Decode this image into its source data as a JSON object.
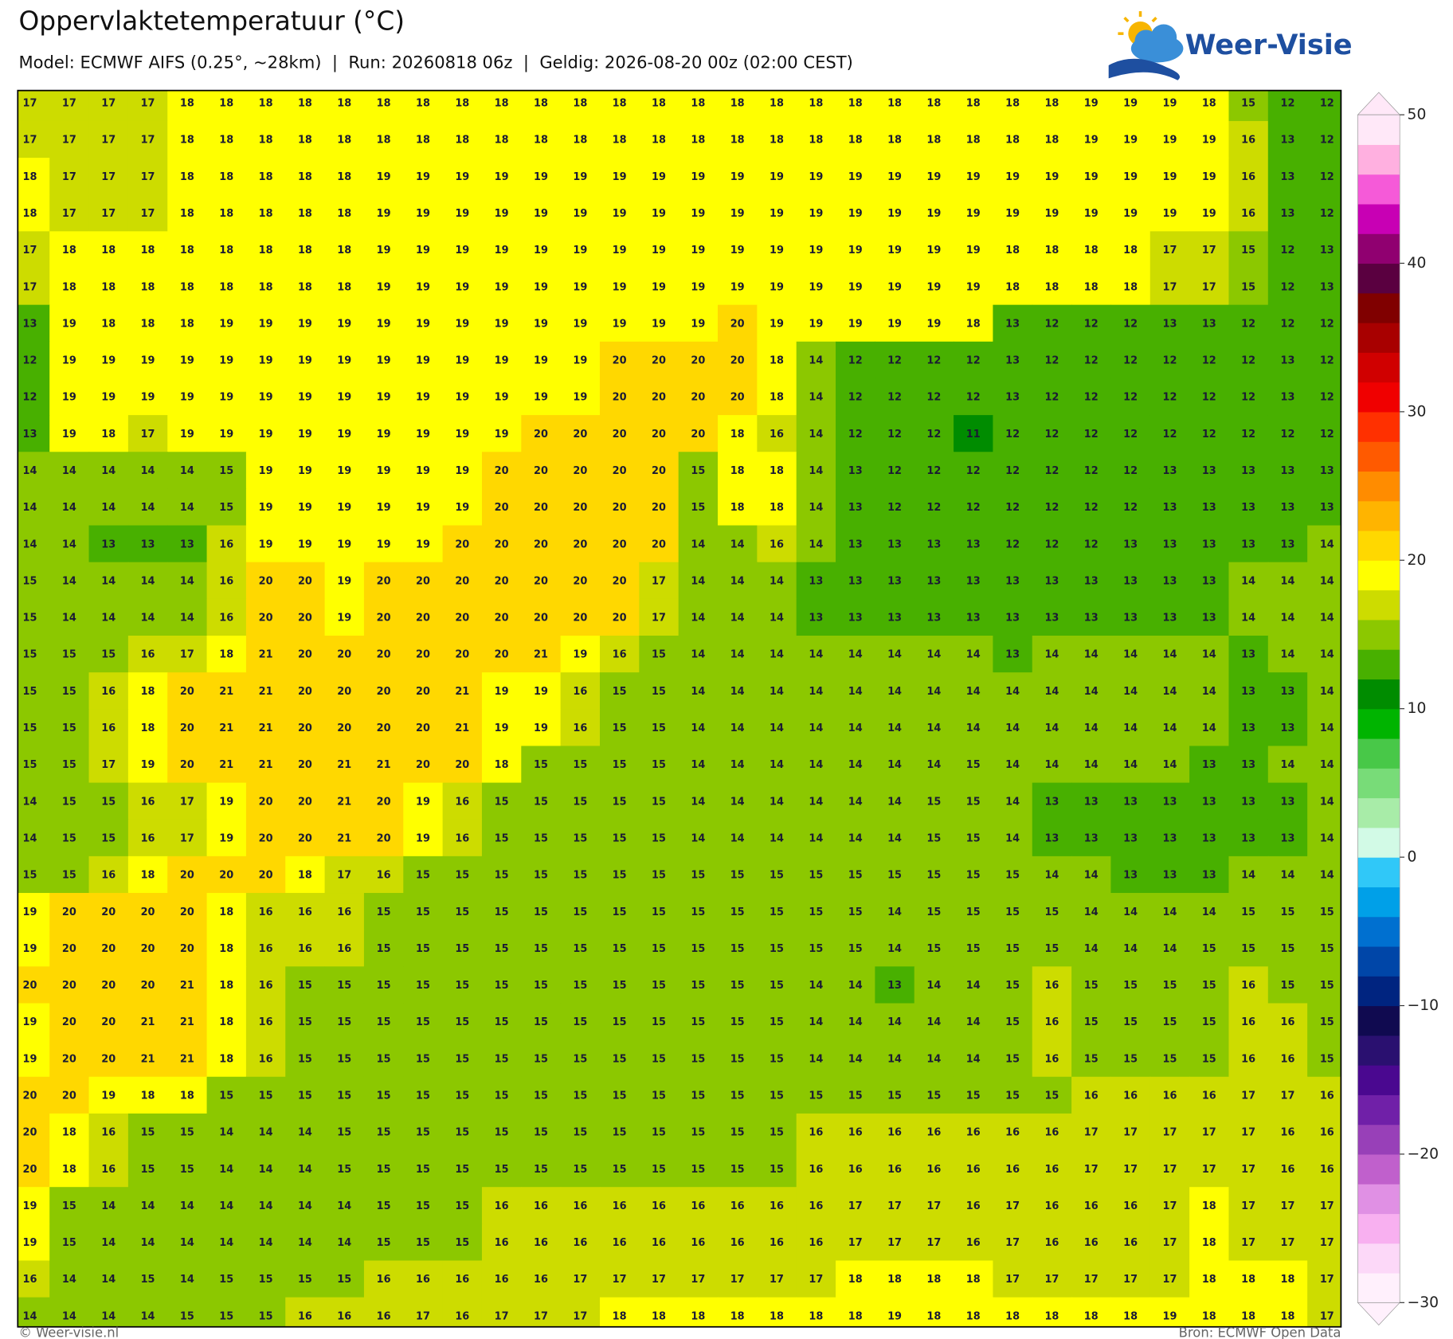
{
  "header": {
    "title": "Oppervlaktetemperatuur (°C)",
    "subtitle": "Model: ECMWF AIFS (0.25°, ~28km)  |  Run: 20260818 06z  |  Geldig: 2026-08-20 00z (02:00 CEST)"
  },
  "logo": "Weer-Visie",
  "grid": [
    [
      17,
      17,
      17,
      17,
      18,
      18,
      18,
      18,
      18,
      18,
      18,
      18,
      18,
      18,
      18,
      18,
      18,
      18,
      18,
      18,
      18,
      18,
      18,
      18,
      18,
      18,
      18,
      19,
      19,
      19,
      18,
      15,
      12,
      12
    ],
    [
      17,
      17,
      17,
      17,
      18,
      18,
      18,
      18,
      18,
      18,
      18,
      18,
      18,
      18,
      18,
      18,
      18,
      18,
      18,
      18,
      18,
      18,
      18,
      18,
      18,
      18,
      18,
      19,
      19,
      19,
      19,
      16,
      13,
      12
    ],
    [
      18,
      17,
      17,
      17,
      18,
      18,
      18,
      18,
      18,
      19,
      19,
      19,
      19,
      19,
      19,
      19,
      19,
      19,
      19,
      19,
      19,
      19,
      19,
      19,
      19,
      19,
      19,
      19,
      19,
      19,
      19,
      16,
      13,
      12
    ],
    [
      18,
      17,
      17,
      17,
      18,
      18,
      18,
      18,
      18,
      19,
      19,
      19,
      19,
      19,
      19,
      19,
      19,
      19,
      19,
      19,
      19,
      19,
      19,
      19,
      19,
      19,
      19,
      19,
      19,
      19,
      19,
      16,
      13,
      12
    ],
    [
      17,
      18,
      18,
      18,
      18,
      18,
      18,
      18,
      18,
      19,
      19,
      19,
      19,
      19,
      19,
      19,
      19,
      19,
      19,
      19,
      19,
      19,
      19,
      19,
      19,
      18,
      18,
      18,
      18,
      17,
      17,
      15,
      12,
      13
    ],
    [
      17,
      18,
      18,
      18,
      18,
      18,
      18,
      18,
      18,
      19,
      19,
      19,
      19,
      19,
      19,
      19,
      19,
      19,
      19,
      19,
      19,
      19,
      19,
      19,
      19,
      18,
      18,
      18,
      18,
      17,
      17,
      15,
      12,
      13
    ],
    [
      13,
      19,
      18,
      18,
      18,
      19,
      19,
      19,
      19,
      19,
      19,
      19,
      19,
      19,
      19,
      19,
      19,
      19,
      20,
      19,
      19,
      19,
      19,
      19,
      18,
      13,
      12,
      12,
      12,
      13,
      13,
      12,
      12,
      12
    ],
    [
      12,
      19,
      19,
      19,
      19,
      19,
      19,
      19,
      19,
      19,
      19,
      19,
      19,
      19,
      19,
      20,
      20,
      20,
      20,
      18,
      14,
      12,
      12,
      12,
      12,
      13,
      12,
      12,
      12,
      12,
      12,
      12,
      13,
      12
    ],
    [
      12,
      19,
      19,
      19,
      19,
      19,
      19,
      19,
      19,
      19,
      19,
      19,
      19,
      19,
      19,
      20,
      20,
      20,
      20,
      18,
      14,
      12,
      12,
      12,
      12,
      13,
      12,
      12,
      12,
      12,
      12,
      12,
      13,
      12
    ],
    [
      13,
      19,
      18,
      17,
      19,
      19,
      19,
      19,
      19,
      19,
      19,
      19,
      19,
      20,
      20,
      20,
      20,
      20,
      18,
      16,
      14,
      12,
      12,
      12,
      11,
      12,
      12,
      12,
      12,
      12,
      12,
      12,
      12,
      12
    ],
    [
      14,
      14,
      14,
      14,
      14,
      15,
      19,
      19,
      19,
      19,
      19,
      19,
      20,
      20,
      20,
      20,
      20,
      15,
      18,
      18,
      14,
      13,
      12,
      12,
      12,
      12,
      12,
      12,
      12,
      13,
      13,
      13,
      13,
      13
    ],
    [
      14,
      14,
      14,
      14,
      14,
      15,
      19,
      19,
      19,
      19,
      19,
      19,
      20,
      20,
      20,
      20,
      20,
      15,
      18,
      18,
      14,
      13,
      12,
      12,
      12,
      12,
      12,
      12,
      12,
      13,
      13,
      13,
      13,
      13
    ],
    [
      14,
      14,
      13,
      13,
      13,
      16,
      19,
      19,
      19,
      19,
      19,
      20,
      20,
      20,
      20,
      20,
      20,
      14,
      14,
      16,
      14,
      13,
      13,
      13,
      13,
      12,
      12,
      12,
      13,
      13,
      13,
      13,
      13,
      14
    ],
    [
      15,
      14,
      14,
      14,
      14,
      16,
      20,
      20,
      19,
      20,
      20,
      20,
      20,
      20,
      20,
      20,
      17,
      14,
      14,
      14,
      13,
      13,
      13,
      13,
      13,
      13,
      13,
      13,
      13,
      13,
      13,
      14,
      14,
      14
    ],
    [
      15,
      14,
      14,
      14,
      14,
      16,
      20,
      20,
      19,
      20,
      20,
      20,
      20,
      20,
      20,
      20,
      17,
      14,
      14,
      14,
      13,
      13,
      13,
      13,
      13,
      13,
      13,
      13,
      13,
      13,
      13,
      14,
      14,
      14
    ],
    [
      15,
      15,
      15,
      16,
      17,
      18,
      21,
      20,
      20,
      20,
      20,
      20,
      20,
      21,
      19,
      16,
      15,
      14,
      14,
      14,
      14,
      14,
      14,
      14,
      14,
      13,
      14,
      14,
      14,
      14,
      14,
      13,
      14,
      14
    ],
    [
      15,
      15,
      16,
      18,
      20,
      21,
      21,
      20,
      20,
      20,
      20,
      21,
      19,
      19,
      16,
      15,
      15,
      14,
      14,
      14,
      14,
      14,
      14,
      14,
      14,
      14,
      14,
      14,
      14,
      14,
      14,
      13,
      13,
      14
    ],
    [
      15,
      15,
      16,
      18,
      20,
      21,
      21,
      20,
      20,
      20,
      20,
      21,
      19,
      19,
      16,
      15,
      15,
      14,
      14,
      14,
      14,
      14,
      14,
      14,
      14,
      14,
      14,
      14,
      14,
      14,
      14,
      13,
      13,
      14
    ],
    [
      15,
      15,
      17,
      19,
      20,
      21,
      21,
      20,
      21,
      21,
      20,
      20,
      18,
      15,
      15,
      15,
      15,
      14,
      14,
      14,
      14,
      14,
      14,
      14,
      15,
      14,
      14,
      14,
      14,
      14,
      13,
      13,
      14,
      14
    ],
    [
      14,
      15,
      15,
      16,
      17,
      19,
      20,
      20,
      21,
      20,
      19,
      16,
      15,
      15,
      15,
      15,
      15,
      14,
      14,
      14,
      14,
      14,
      14,
      15,
      15,
      14,
      13,
      13,
      13,
      13,
      13,
      13,
      13,
      14
    ],
    [
      14,
      15,
      15,
      16,
      17,
      19,
      20,
      20,
      21,
      20,
      19,
      16,
      15,
      15,
      15,
      15,
      15,
      14,
      14,
      14,
      14,
      14,
      14,
      15,
      15,
      14,
      13,
      13,
      13,
      13,
      13,
      13,
      13,
      14
    ],
    [
      15,
      15,
      16,
      18,
      20,
      20,
      20,
      18,
      17,
      16,
      15,
      15,
      15,
      15,
      15,
      15,
      15,
      15,
      15,
      15,
      15,
      15,
      15,
      15,
      15,
      15,
      14,
      14,
      13,
      13,
      13,
      14,
      14,
      14
    ],
    [
      19,
      20,
      20,
      20,
      20,
      18,
      16,
      16,
      16,
      15,
      15,
      15,
      15,
      15,
      15,
      15,
      15,
      15,
      15,
      15,
      15,
      15,
      14,
      15,
      15,
      15,
      15,
      14,
      14,
      14,
      14,
      15,
      15,
      15
    ],
    [
      19,
      20,
      20,
      20,
      20,
      18,
      16,
      16,
      16,
      15,
      15,
      15,
      15,
      15,
      15,
      15,
      15,
      15,
      15,
      15,
      15,
      15,
      14,
      15,
      15,
      15,
      15,
      14,
      14,
      14,
      15,
      15,
      15,
      15
    ],
    [
      20,
      20,
      20,
      20,
      21,
      18,
      16,
      15,
      15,
      15,
      15,
      15,
      15,
      15,
      15,
      15,
      15,
      15,
      15,
      15,
      14,
      14,
      13,
      14,
      14,
      15,
      16,
      15,
      15,
      15,
      15,
      16,
      15,
      15
    ],
    [
      19,
      20,
      20,
      21,
      21,
      18,
      16,
      15,
      15,
      15,
      15,
      15,
      15,
      15,
      15,
      15,
      15,
      15,
      15,
      15,
      14,
      14,
      14,
      14,
      14,
      15,
      16,
      15,
      15,
      15,
      15,
      16,
      16,
      15
    ],
    [
      19,
      20,
      20,
      21,
      21,
      18,
      16,
      15,
      15,
      15,
      15,
      15,
      15,
      15,
      15,
      15,
      15,
      15,
      15,
      15,
      14,
      14,
      14,
      14,
      14,
      15,
      16,
      15,
      15,
      15,
      15,
      16,
      16,
      15
    ],
    [
      20,
      20,
      19,
      18,
      18,
      15,
      15,
      15,
      15,
      15,
      15,
      15,
      15,
      15,
      15,
      15,
      15,
      15,
      15,
      15,
      15,
      15,
      15,
      15,
      15,
      15,
      15,
      16,
      16,
      16,
      16,
      17,
      17,
      16
    ],
    [
      20,
      18,
      16,
      15,
      15,
      14,
      14,
      14,
      15,
      15,
      15,
      15,
      15,
      15,
      15,
      15,
      15,
      15,
      15,
      15,
      16,
      16,
      16,
      16,
      16,
      16,
      16,
      17,
      17,
      17,
      17,
      17,
      16,
      16
    ],
    [
      20,
      18,
      16,
      15,
      15,
      14,
      14,
      14,
      15,
      15,
      15,
      15,
      15,
      15,
      15,
      15,
      15,
      15,
      15,
      15,
      16,
      16,
      16,
      16,
      16,
      16,
      16,
      17,
      17,
      17,
      17,
      17,
      16,
      16
    ],
    [
      19,
      15,
      14,
      14,
      14,
      14,
      14,
      14,
      14,
      15,
      15,
      15,
      16,
      16,
      16,
      16,
      16,
      16,
      16,
      16,
      16,
      17,
      17,
      17,
      16,
      17,
      16,
      16,
      16,
      17,
      18,
      17,
      17,
      17
    ],
    [
      19,
      15,
      14,
      14,
      14,
      14,
      14,
      14,
      14,
      15,
      15,
      15,
      16,
      16,
      16,
      16,
      16,
      16,
      16,
      16,
      16,
      17,
      17,
      17,
      16,
      17,
      16,
      16,
      16,
      17,
      18,
      17,
      17,
      17
    ],
    [
      16,
      14,
      14,
      15,
      14,
      15,
      15,
      15,
      15,
      16,
      16,
      16,
      16,
      16,
      17,
      17,
      17,
      17,
      17,
      17,
      17,
      18,
      18,
      18,
      18,
      17,
      17,
      17,
      17,
      17,
      18,
      18,
      18,
      17
    ],
    [
      14,
      14,
      14,
      14,
      15,
      15,
      15,
      16,
      16,
      16,
      17,
      16,
      17,
      17,
      17,
      18,
      18,
      18,
      18,
      18,
      18,
      18,
      19,
      18,
      18,
      18,
      18,
      18,
      18,
      19,
      18,
      18,
      18,
      17
    ]
  ],
  "colorbar": {
    "lim": [
      -30,
      50
    ],
    "ticks": [
      50,
      40,
      30,
      20,
      10,
      0,
      {
        "value": -10,
        "label": "−10"
      },
      {
        "value": -20,
        "label": "−20"
      },
      {
        "value": -30,
        "label": "−30"
      }
    ],
    "colors": [
      "#fff0fc",
      "#fcd8f8",
      "#f8b0f0",
      "#e090e4",
      "#c060cc",
      "#9840b8",
      "#7020a8",
      "#4a0890",
      "#2a1070",
      "#100a50",
      "#002480",
      "#0046a8",
      "#0070d0",
      "#00a0e8",
      "#30c8f8",
      "#d2fae6",
      "#a8eca8",
      "#78dc78",
      "#48c848",
      "#00b400",
      "#008c00",
      "#48b000",
      "#8cc800",
      "#cddc00",
      "#ffff00",
      "#ffd800",
      "#ffb400",
      "#ff8c00",
      "#ff5a00",
      "#ff3000",
      "#f00000",
      "#d00000",
      "#a80000",
      "#800000",
      "#5a0040",
      "#900070",
      "#c800b4",
      "#f55ad8",
      "#ffb0e0",
      "#ffe8f8"
    ]
  },
  "footer": {
    "left": "© Weer-visie.nl",
    "right": "Bron: ECMWF Open Data"
  }
}
